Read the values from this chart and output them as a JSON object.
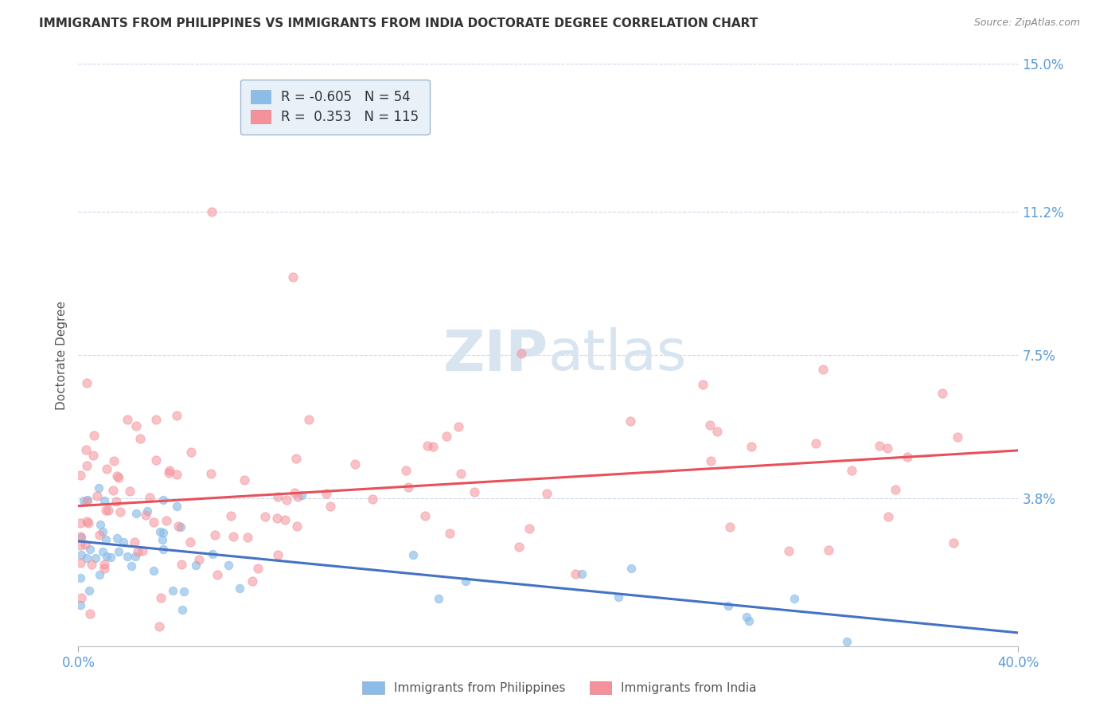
{
  "title": "IMMIGRANTS FROM PHILIPPINES VS IMMIGRANTS FROM INDIA DOCTORATE DEGREE CORRELATION CHART",
  "source": "Source: ZipAtlas.com",
  "xlabel_bottom": "Immigrants from Philippines",
  "xlabel_bottom2": "Immigrants from India",
  "ylabel": "Doctorate Degree",
  "xmin": 0.0,
  "xmax": 0.4,
  "ymin": 0.0,
  "ymax": 0.15,
  "yticks": [
    0.038,
    0.075,
    0.112,
    0.15
  ],
  "ytick_labels": [
    "3.8%",
    "7.5%",
    "11.2%",
    "15.0%"
  ],
  "r_philippines": -0.605,
  "n_philippines": 54,
  "r_india": 0.353,
  "n_india": 115,
  "color_philippines": "#8BBDE8",
  "color_india": "#F4919A",
  "color_line_philippines": "#4472C4",
  "color_line_india": "#E8505A",
  "color_ytick_labels": "#5B9BD5",
  "color_xtick_labels": "#5B9BD5",
  "grid_color": "#C8D4E8",
  "watermark_color": "#D8E4F0",
  "legend_box_color": "#E8F0F8",
  "legend_border_color": "#A0B8D0"
}
